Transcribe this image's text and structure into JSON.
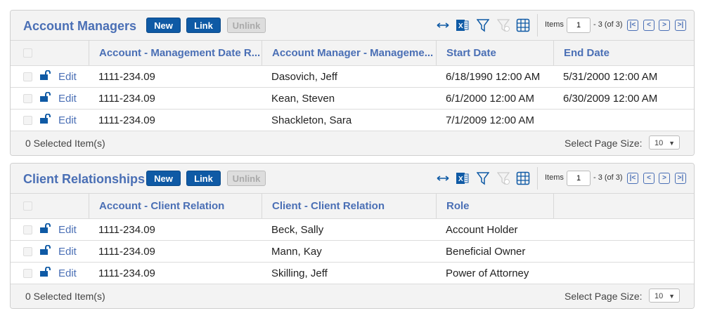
{
  "colors": {
    "accent": "#0f5aa5",
    "link": "#4a6fb5"
  },
  "panels": [
    {
      "title": "Account Managers",
      "buttons": {
        "new": "New",
        "link": "Link",
        "unlink": "Unlink"
      },
      "toolbar_icons": [
        "resize-columns-icon",
        "excel-export-icon",
        "filter-icon",
        "clear-filter-icon",
        "grid-columns-icon"
      ],
      "pager": {
        "items_label": "Items",
        "page_value": "1",
        "range": "- 3 (of 3)"
      },
      "columns": [
        "Account - Management Date R...",
        "Account Manager - Manageme...",
        "Start Date",
        "End Date"
      ],
      "edit_label": "Edit",
      "rows": [
        [
          "1111-234.09",
          "Dasovich, Jeff",
          "6/18/1990   12:00 AM",
          "5/31/2000   12:00 AM"
        ],
        [
          "1111-234.09",
          "Kean, Steven",
          "6/1/2000   12:00 AM",
          "6/30/2009   12:00 AM"
        ],
        [
          "1111-234.09",
          "Shackleton, Sara",
          "7/1/2009   12:00 AM",
          ""
        ]
      ],
      "footer": {
        "selected": "0 Selected Item(s)",
        "page_size_label": "Select Page Size:",
        "page_size": "10"
      }
    },
    {
      "title": "Client Relationships",
      "buttons": {
        "new": "New",
        "link": "Link",
        "unlink": "Unlink"
      },
      "toolbar_icons": [
        "resize-columns-icon",
        "excel-export-icon",
        "filter-icon",
        "clear-filter-icon",
        "grid-columns-icon"
      ],
      "pager": {
        "items_label": "Items",
        "page_value": "1",
        "range": "- 3 (of 3)"
      },
      "columns": [
        "Account - Client Relation",
        "Client - Client Relation",
        "Role",
        ""
      ],
      "edit_label": "Edit",
      "rows": [
        [
          "1111-234.09",
          "Beck, Sally",
          "Account Holder",
          ""
        ],
        [
          "1111-234.09",
          "Mann, Kay",
          "Beneficial Owner",
          ""
        ],
        [
          "1111-234.09",
          "Skilling, Jeff",
          "Power of Attorney",
          ""
        ]
      ],
      "footer": {
        "selected": "0 Selected Item(s)",
        "page_size_label": "Select Page Size:",
        "page_size": "10"
      }
    }
  ]
}
